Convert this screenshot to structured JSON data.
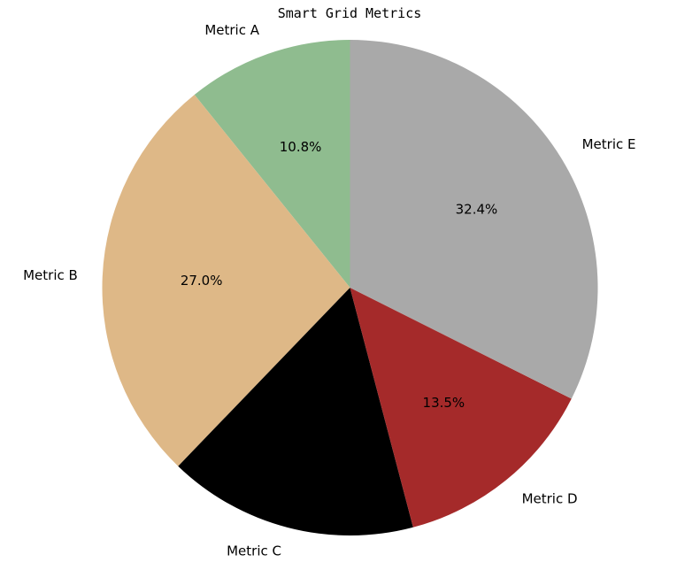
{
  "chart_data": {
    "type": "pie",
    "title": "Smart Grid Metrics",
    "labels": [
      "Metric A",
      "Metric B",
      "Metric C",
      "Metric D",
      "Metric E"
    ],
    "values": [
      10.8,
      27.0,
      16.3,
      13.5,
      32.4
    ],
    "percent_labels": [
      "10.8%",
      "27.0%",
      "",
      "13.5%",
      "32.4%"
    ],
    "colors": [
      "#8fbc8f",
      "#deb887",
      "#000000",
      "#a52a2a",
      "#a9a9a9"
    ],
    "start_angle_deg": 90,
    "direction": "counterclockwise",
    "legend": "none"
  }
}
